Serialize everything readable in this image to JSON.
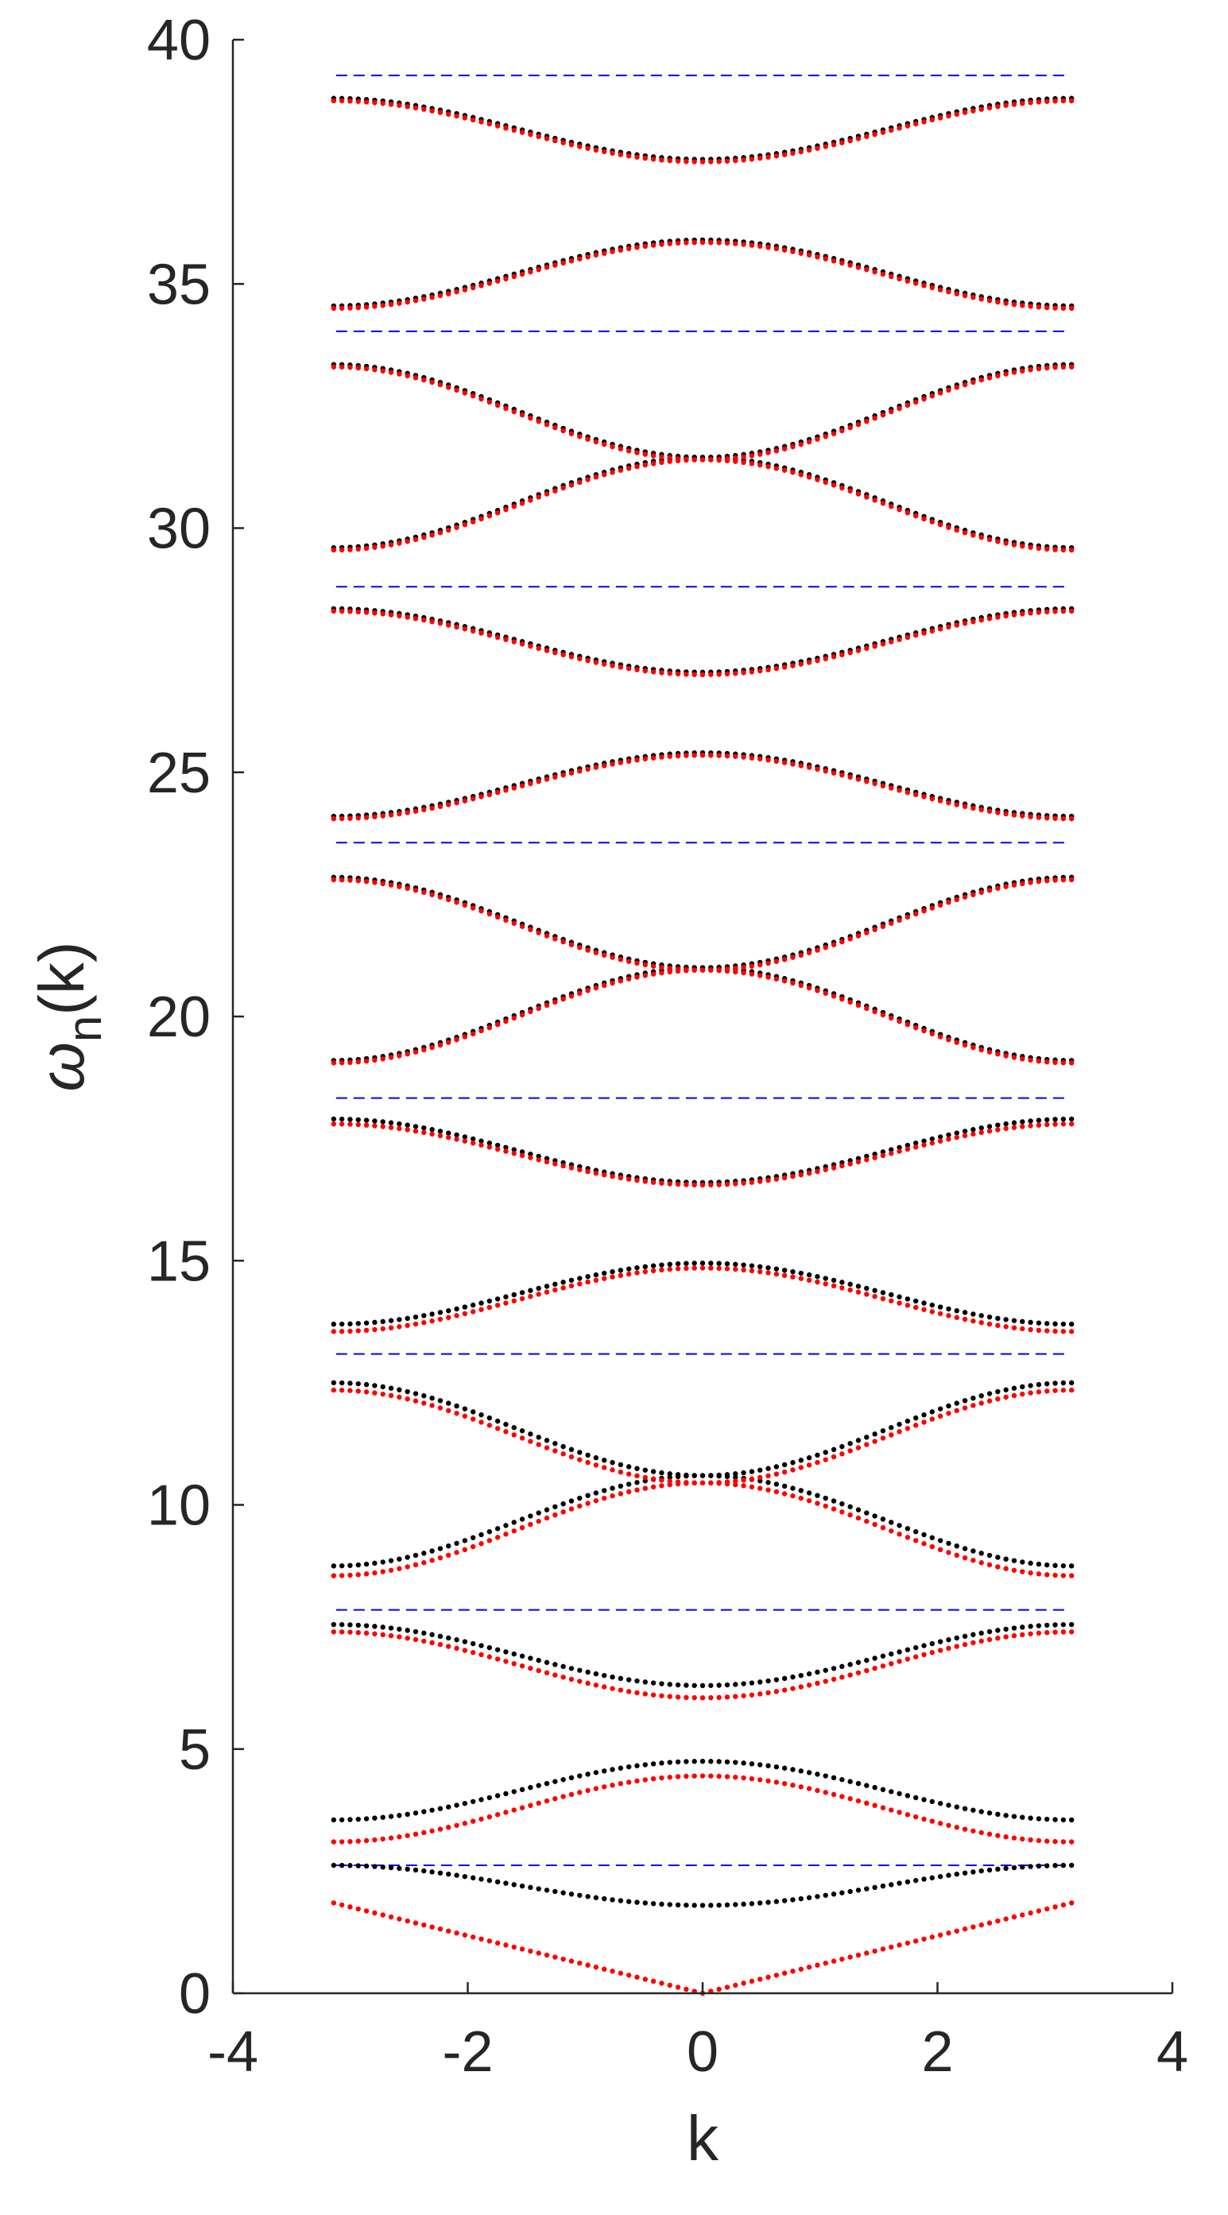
{
  "chart_data": {
    "type": "scatter",
    "title": "",
    "xlabel": "k",
    "ylabel": {
      "base": "ω",
      "sub": "n",
      "rest": "(k)"
    },
    "xlim": [
      -4,
      4
    ],
    "ylim": [
      0,
      40
    ],
    "xticks": [
      -4,
      -2,
      0,
      2,
      4
    ],
    "yticks": [
      0,
      5,
      10,
      15,
      20,
      25,
      30,
      35,
      40
    ],
    "x_tick_labels": [
      "-4",
      "-2",
      "0",
      "2",
      "4"
    ],
    "y_tick_labels": [
      "0",
      "5",
      "10",
      "15",
      "20",
      "25",
      "30",
      "35",
      "40"
    ],
    "grid": false,
    "legend": "none",
    "k_range": [
      -3.1416,
      3.1416
    ],
    "colors": {
      "series_black": "#000000",
      "series_red": "#ff0000",
      "reference_lines": "#0000ff"
    },
    "reference_lines": {
      "style": "dashed",
      "color": "#0000ff",
      "y": [
        2.62,
        7.85,
        13.09,
        18.33,
        23.56,
        28.8,
        34.03,
        39.27
      ]
    },
    "series": [
      {
        "color": "#000000",
        "bands": [
          {
            "n": 1,
            "y_at_k0": 1.8,
            "y_at_edge": 2.62
          },
          {
            "n": 2,
            "y_at_k0": 4.75,
            "y_at_edge": 3.55
          },
          {
            "n": 3,
            "y_at_k0": 6.3,
            "y_at_edge": 7.55
          },
          {
            "n": 4,
            "y_at_k0": 10.6,
            "y_at_edge": 8.75
          },
          {
            "n": 5,
            "y_at_k0": 10.6,
            "y_at_edge": 12.5
          },
          {
            "n": 6,
            "y_at_k0": 14.95,
            "y_at_edge": 13.7
          },
          {
            "n": 7,
            "y_at_k0": 16.6,
            "y_at_edge": 17.9
          },
          {
            "n": 8,
            "y_at_k0": 21.0,
            "y_at_edge": 19.1
          },
          {
            "n": 9,
            "y_at_k0": 21.0,
            "y_at_edge": 22.85
          },
          {
            "n": 10,
            "y_at_k0": 25.4,
            "y_at_edge": 24.1
          },
          {
            "n": 11,
            "y_at_k0": 27.05,
            "y_at_edge": 28.35
          },
          {
            "n": 12,
            "y_at_k0": 31.45,
            "y_at_edge": 29.6
          },
          {
            "n": 13,
            "y_at_k0": 31.45,
            "y_at_edge": 33.35
          },
          {
            "n": 14,
            "y_at_k0": 35.9,
            "y_at_edge": 34.55
          },
          {
            "n": 15,
            "y_at_k0": 37.55,
            "y_at_edge": 38.8
          }
        ]
      },
      {
        "color": "#ff0000",
        "bands": [
          {
            "n": 1,
            "y_at_k0": 0.0,
            "y_at_edge": 1.85,
            "shape": "linear"
          },
          {
            "n": 2,
            "y_at_k0": 4.45,
            "y_at_edge": 3.1
          },
          {
            "n": 3,
            "y_at_k0": 6.05,
            "y_at_edge": 7.4
          },
          {
            "n": 4,
            "y_at_k0": 10.45,
            "y_at_edge": 8.55
          },
          {
            "n": 5,
            "y_at_k0": 10.45,
            "y_at_edge": 12.35
          },
          {
            "n": 6,
            "y_at_k0": 14.85,
            "y_at_edge": 13.55
          },
          {
            "n": 7,
            "y_at_k0": 16.55,
            "y_at_edge": 17.8
          },
          {
            "n": 8,
            "y_at_k0": 20.95,
            "y_at_edge": 19.05
          },
          {
            "n": 9,
            "y_at_k0": 20.95,
            "y_at_edge": 22.8
          },
          {
            "n": 10,
            "y_at_k0": 25.35,
            "y_at_edge": 24.05
          },
          {
            "n": 11,
            "y_at_k0": 27.0,
            "y_at_edge": 28.3
          },
          {
            "n": 12,
            "y_at_k0": 31.4,
            "y_at_edge": 29.55
          },
          {
            "n": 13,
            "y_at_k0": 31.4,
            "y_at_edge": 33.3
          },
          {
            "n": 14,
            "y_at_k0": 35.85,
            "y_at_edge": 34.5
          },
          {
            "n": 15,
            "y_at_k0": 37.5,
            "y_at_edge": 38.75
          }
        ]
      }
    ]
  }
}
